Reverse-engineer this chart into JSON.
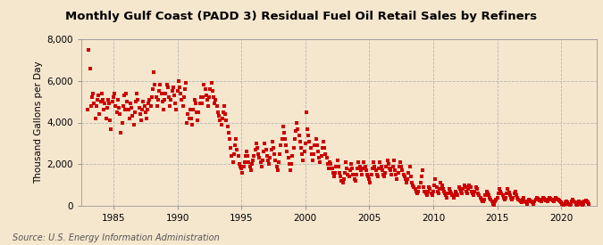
{
  "title": "Monthly Gulf Coast (PADD 3) Residual Fuel Oil Retail Sales by Refiners",
  "ylabel": "Thousand Gallons per Day",
  "source": "Source: U.S. Energy Information Administration",
  "background_color": "#f5e6ce",
  "plot_bg_color": "#f5e6ce",
  "marker_color": "#cc0000",
  "marker": "s",
  "marker_size": 3.2,
  "xlim_left": 1982.5,
  "xlim_right": 2022.8,
  "ylim_bottom": 0,
  "ylim_top": 8000,
  "yticks": [
    0,
    2000,
    4000,
    6000,
    8000
  ],
  "xticks": [
    1985,
    1990,
    1995,
    2000,
    2005,
    2010,
    2015,
    2020
  ],
  "grid_color": "#b0b0b0",
  "grid_style": "--",
  "title_fontsize": 9.5,
  "ylabel_fontsize": 7.5,
  "tick_fontsize": 7.5,
  "source_fontsize": 7,
  "data_x": [
    1983.0,
    1983.08,
    1983.17,
    1983.25,
    1983.33,
    1983.42,
    1983.5,
    1983.58,
    1983.67,
    1983.75,
    1983.83,
    1983.92,
    1984.0,
    1984.08,
    1984.17,
    1984.25,
    1984.33,
    1984.42,
    1984.5,
    1984.58,
    1984.67,
    1984.75,
    1984.83,
    1984.92,
    1985.0,
    1985.08,
    1985.17,
    1985.25,
    1985.33,
    1985.42,
    1985.5,
    1985.58,
    1985.67,
    1985.75,
    1985.83,
    1985.92,
    1986.0,
    1986.08,
    1986.17,
    1986.25,
    1986.33,
    1986.42,
    1986.5,
    1986.58,
    1986.67,
    1986.75,
    1986.83,
    1986.92,
    1987.0,
    1987.08,
    1987.17,
    1987.25,
    1987.33,
    1987.42,
    1987.5,
    1987.58,
    1987.67,
    1987.75,
    1987.83,
    1987.92,
    1988.0,
    1988.08,
    1988.17,
    1988.25,
    1988.33,
    1988.42,
    1988.5,
    1988.58,
    1988.67,
    1988.75,
    1988.83,
    1988.92,
    1989.0,
    1989.08,
    1989.17,
    1989.25,
    1989.33,
    1989.42,
    1989.5,
    1989.58,
    1989.67,
    1989.75,
    1989.83,
    1989.92,
    1990.0,
    1990.08,
    1990.17,
    1990.25,
    1990.33,
    1990.42,
    1990.5,
    1990.58,
    1990.67,
    1990.75,
    1990.83,
    1990.92,
    1991.0,
    1991.08,
    1991.17,
    1991.25,
    1991.33,
    1991.42,
    1991.5,
    1991.58,
    1991.67,
    1991.75,
    1991.83,
    1991.92,
    1992.0,
    1992.08,
    1992.17,
    1992.25,
    1992.33,
    1992.42,
    1992.5,
    1992.58,
    1992.67,
    1992.75,
    1992.83,
    1992.92,
    1993.0,
    1993.08,
    1993.17,
    1993.25,
    1993.33,
    1993.42,
    1993.5,
    1993.58,
    1993.67,
    1993.75,
    1993.83,
    1993.92,
    1994.0,
    1994.08,
    1994.17,
    1994.25,
    1994.33,
    1994.42,
    1994.5,
    1994.58,
    1994.67,
    1994.75,
    1994.83,
    1994.92,
    1995.0,
    1995.08,
    1995.17,
    1995.25,
    1995.33,
    1995.42,
    1995.5,
    1995.58,
    1995.67,
    1995.75,
    1995.83,
    1995.92,
    1996.0,
    1996.08,
    1996.17,
    1996.25,
    1996.33,
    1996.42,
    1996.5,
    1996.58,
    1996.67,
    1996.75,
    1996.83,
    1996.92,
    1997.0,
    1997.08,
    1997.17,
    1997.25,
    1997.33,
    1997.42,
    1997.5,
    1997.58,
    1997.67,
    1997.75,
    1997.83,
    1997.92,
    1998.0,
    1998.08,
    1998.17,
    1998.25,
    1998.33,
    1998.42,
    1998.5,
    1998.58,
    1998.67,
    1998.75,
    1998.83,
    1998.92,
    1999.0,
    1999.08,
    1999.17,
    1999.25,
    1999.33,
    1999.42,
    1999.5,
    1999.58,
    1999.67,
    1999.75,
    1999.83,
    1999.92,
    2000.0,
    2000.08,
    2000.17,
    2000.25,
    2000.33,
    2000.42,
    2000.5,
    2000.58,
    2000.67,
    2000.75,
    2000.83,
    2000.92,
    2001.0,
    2001.08,
    2001.17,
    2001.25,
    2001.33,
    2001.42,
    2001.5,
    2001.58,
    2001.67,
    2001.75,
    2001.83,
    2001.92,
    2002.0,
    2002.08,
    2002.17,
    2002.25,
    2002.33,
    2002.42,
    2002.5,
    2002.58,
    2002.67,
    2002.75,
    2002.83,
    2002.92,
    2003.0,
    2003.08,
    2003.17,
    2003.25,
    2003.33,
    2003.42,
    2003.5,
    2003.58,
    2003.67,
    2003.75,
    2003.83,
    2003.92,
    2004.0,
    2004.08,
    2004.17,
    2004.25,
    2004.33,
    2004.42,
    2004.5,
    2004.58,
    2004.67,
    2004.75,
    2004.83,
    2004.92,
    2005.0,
    2005.08,
    2005.17,
    2005.25,
    2005.33,
    2005.42,
    2005.5,
    2005.58,
    2005.67,
    2005.75,
    2005.83,
    2005.92,
    2006.0,
    2006.08,
    2006.17,
    2006.25,
    2006.33,
    2006.42,
    2006.5,
    2006.58,
    2006.67,
    2006.75,
    2006.83,
    2006.92,
    2007.0,
    2007.08,
    2007.17,
    2007.25,
    2007.33,
    2007.42,
    2007.5,
    2007.58,
    2007.67,
    2007.75,
    2007.83,
    2007.92,
    2008.0,
    2008.08,
    2008.17,
    2008.25,
    2008.33,
    2008.42,
    2008.5,
    2008.58,
    2008.67,
    2008.75,
    2008.83,
    2008.92,
    2009.0,
    2009.08,
    2009.17,
    2009.25,
    2009.33,
    2009.42,
    2009.5,
    2009.58,
    2009.67,
    2009.75,
    2009.83,
    2009.92,
    2010.0,
    2010.08,
    2010.17,
    2010.25,
    2010.33,
    2010.42,
    2010.5,
    2010.58,
    2010.67,
    2010.75,
    2010.83,
    2010.92,
    2011.0,
    2011.08,
    2011.17,
    2011.25,
    2011.33,
    2011.42,
    2011.5,
    2011.58,
    2011.67,
    2011.75,
    2011.83,
    2011.92,
    2012.0,
    2012.08,
    2012.17,
    2012.25,
    2012.33,
    2012.42,
    2012.5,
    2012.58,
    2012.67,
    2012.75,
    2012.83,
    2012.92,
    2013.0,
    2013.08,
    2013.17,
    2013.25,
    2013.33,
    2013.42,
    2013.5,
    2013.58,
    2013.67,
    2013.75,
    2013.83,
    2013.92,
    2014.0,
    2014.08,
    2014.17,
    2014.25,
    2014.33,
    2014.42,
    2014.5,
    2014.58,
    2014.67,
    2014.75,
    2014.83,
    2014.92,
    2015.0,
    2015.08,
    2015.17,
    2015.25,
    2015.33,
    2015.42,
    2015.5,
    2015.58,
    2015.67,
    2015.75,
    2015.83,
    2015.92,
    2016.0,
    2016.08,
    2016.17,
    2016.25,
    2016.33,
    2016.42,
    2016.5,
    2016.58,
    2016.67,
    2016.75,
    2016.83,
    2016.92,
    2017.0,
    2017.08,
    2017.17,
    2017.25,
    2017.33,
    2017.42,
    2017.5,
    2017.58,
    2017.67,
    2017.75,
    2017.83,
    2017.92,
    2018.0,
    2018.08,
    2018.17,
    2018.25,
    2018.33,
    2018.42,
    2018.5,
    2018.58,
    2018.67,
    2018.75,
    2018.83,
    2018.92,
    2019.0,
    2019.08,
    2019.17,
    2019.25,
    2019.33,
    2019.42,
    2019.5,
    2019.58,
    2019.67,
    2019.75,
    2019.83,
    2019.92,
    2020.0,
    2020.08,
    2020.17,
    2020.25,
    2020.33,
    2020.42,
    2020.5,
    2020.58,
    2020.67,
    2020.75,
    2020.83,
    2020.92,
    2021.0,
    2021.08,
    2021.17,
    2021.25,
    2021.33,
    2021.42,
    2021.5,
    2021.58,
    2021.67,
    2021.75,
    2021.83,
    2021.92,
    2022.0,
    2022.08,
    2022.17
  ],
  "data_y": [
    4600,
    7500,
    6600,
    4800,
    5200,
    5400,
    4900,
    4200,
    4800,
    5100,
    5300,
    4400,
    5000,
    5400,
    5100,
    4600,
    4900,
    4200,
    4700,
    5100,
    4900,
    4100,
    3700,
    5000,
    5200,
    5400,
    4800,
    4500,
    5100,
    4700,
    4400,
    3500,
    4000,
    4800,
    5300,
    4600,
    5400,
    5000,
    4600,
    4200,
    4900,
    4700,
    4300,
    3900,
    4500,
    5000,
    5400,
    5100,
    4700,
    4400,
    4100,
    4600,
    5000,
    4800,
    4500,
    4200,
    4600,
    4900,
    5100,
    4800,
    5200,
    5600,
    6400,
    5800,
    5200,
    4800,
    5100,
    5500,
    5800,
    5400,
    5000,
    4600,
    5100,
    5400,
    5800,
    5700,
    5200,
    4800,
    5100,
    5500,
    5700,
    5300,
    4900,
    4600,
    5500,
    6000,
    5700,
    5400,
    5100,
    4800,
    5200,
    5600,
    5900,
    4000,
    4400,
    4200,
    4600,
    4200,
    3900,
    4600,
    5100,
    4900,
    4500,
    4100,
    4500,
    4900,
    5200,
    4900,
    5200,
    5800,
    5600,
    5300,
    5100,
    4800,
    5200,
    5600,
    5900,
    5500,
    5200,
    4900,
    5100,
    4800,
    4500,
    4300,
    4100,
    3900,
    4200,
    4500,
    4800,
    4400,
    4100,
    3800,
    3500,
    3200,
    2800,
    2400,
    2100,
    2500,
    2900,
    3200,
    2700,
    2400,
    2000,
    1900,
    1800,
    1600,
    1900,
    2100,
    2400,
    2600,
    2400,
    2100,
    1900,
    1700,
    2000,
    2200,
    2400,
    2700,
    3000,
    2800,
    2500,
    2300,
    2100,
    1900,
    2200,
    2600,
    3000,
    2700,
    2400,
    2200,
    2000,
    2300,
    2700,
    3100,
    2800,
    2500,
    2200,
    1900,
    1700,
    2100,
    2500,
    2900,
    3200,
    3800,
    3500,
    3200,
    2900,
    2600,
    2300,
    2000,
    1700,
    2000,
    2400,
    2800,
    3200,
    3600,
    4000,
    3700,
    3400,
    3100,
    2800,
    2500,
    2200,
    2600,
    3000,
    4500,
    3700,
    3400,
    3100,
    2800,
    2500,
    2200,
    2500,
    2900,
    3200,
    2900,
    2600,
    2300,
    2100,
    2400,
    2800,
    3100,
    2800,
    2500,
    2300,
    2000,
    1800,
    2100,
    2000,
    1800,
    1600,
    1400,
    1600,
    1900,
    2200,
    1900,
    1600,
    1400,
    1200,
    1100,
    1300,
    1600,
    2100,
    1800,
    1500,
    1400,
    1700,
    2000,
    1800,
    1500,
    1300,
    1200,
    1500,
    1800,
    2100,
    1900,
    1700,
    1500,
    1800,
    2100,
    1900,
    1700,
    1500,
    1400,
    1300,
    1100,
    1500,
    1800,
    2100,
    1900,
    1700,
    1500,
    1400,
    1800,
    2100,
    1900,
    1700,
    1500,
    1400,
    1600,
    1900,
    2200,
    2000,
    1800,
    1700,
    1500,
    1900,
    2200,
    1700,
    1500,
    1300,
    1600,
    1900,
    2100,
    1900,
    1700,
    1500,
    1400,
    1300,
    1100,
    1300,
    1600,
    1900,
    1400,
    1100,
    1000,
    900,
    800,
    700,
    600,
    700,
    900,
    1100,
    1400,
    1700,
    900,
    700,
    600,
    500,
    700,
    900,
    800,
    600,
    500,
    700,
    1000,
    1300,
    900,
    700,
    600,
    800,
    1100,
    1000,
    800,
    700,
    600,
    500,
    400,
    600,
    800,
    700,
    600,
    500,
    400,
    500,
    700,
    600,
    500,
    900,
    800,
    700,
    600,
    800,
    1000,
    900,
    700,
    600,
    800,
    1000,
    900,
    700,
    600,
    500,
    700,
    900,
    800,
    600,
    500,
    400,
    300,
    200,
    200,
    300,
    500,
    700,
    600,
    500,
    400,
    300,
    200,
    100,
    50,
    200,
    300,
    400,
    600,
    800,
    700,
    600,
    500,
    400,
    300,
    400,
    600,
    800,
    650,
    500,
    400,
    300,
    400,
    600,
    700,
    500,
    400,
    300,
    250,
    200,
    150,
    300,
    400,
    200,
    150,
    100,
    200,
    300,
    250,
    200,
    150,
    100,
    200,
    300,
    400,
    350,
    300,
    250,
    200,
    300,
    400,
    350,
    300,
    250,
    200,
    300,
    400,
    350,
    300,
    250,
    200,
    300,
    400,
    350,
    300,
    250,
    200,
    150,
    100,
    50,
    100,
    150,
    200,
    150,
    100,
    50,
    100,
    200,
    300,
    200,
    150,
    100,
    50,
    100,
    200,
    150,
    100,
    50,
    100,
    200,
    250,
    200,
    150,
    100
  ]
}
